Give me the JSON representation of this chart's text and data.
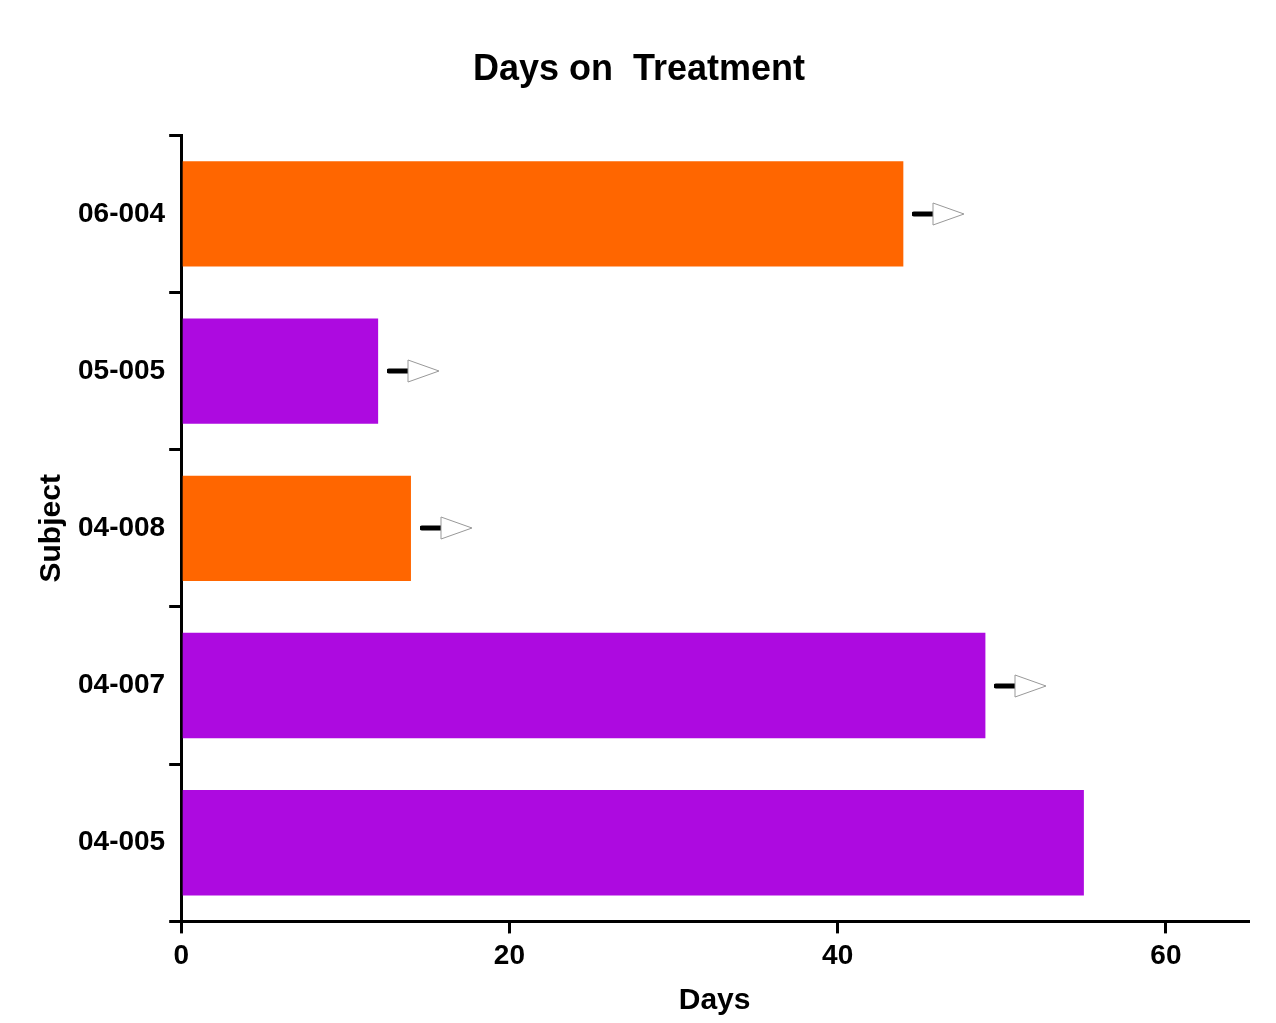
{
  "chart_data": {
    "type": "bar",
    "orientation": "horizontal",
    "title": "Days on  Treatment",
    "xlabel": "Days",
    "ylabel": "Subject",
    "categories": [
      "06-004",
      "05-005",
      "04-008",
      "04-007",
      "04-005"
    ],
    "values": [
      44,
      12,
      14,
      49,
      55
    ],
    "colors": [
      "#ff6600",
      "#ad0ae0",
      "#ff6600",
      "#ad0ae0",
      "#ad0ae0"
    ],
    "xlim": [
      0,
      65
    ],
    "xticks": [
      0,
      20,
      40,
      60
    ],
    "grid": false,
    "legend": false
  }
}
